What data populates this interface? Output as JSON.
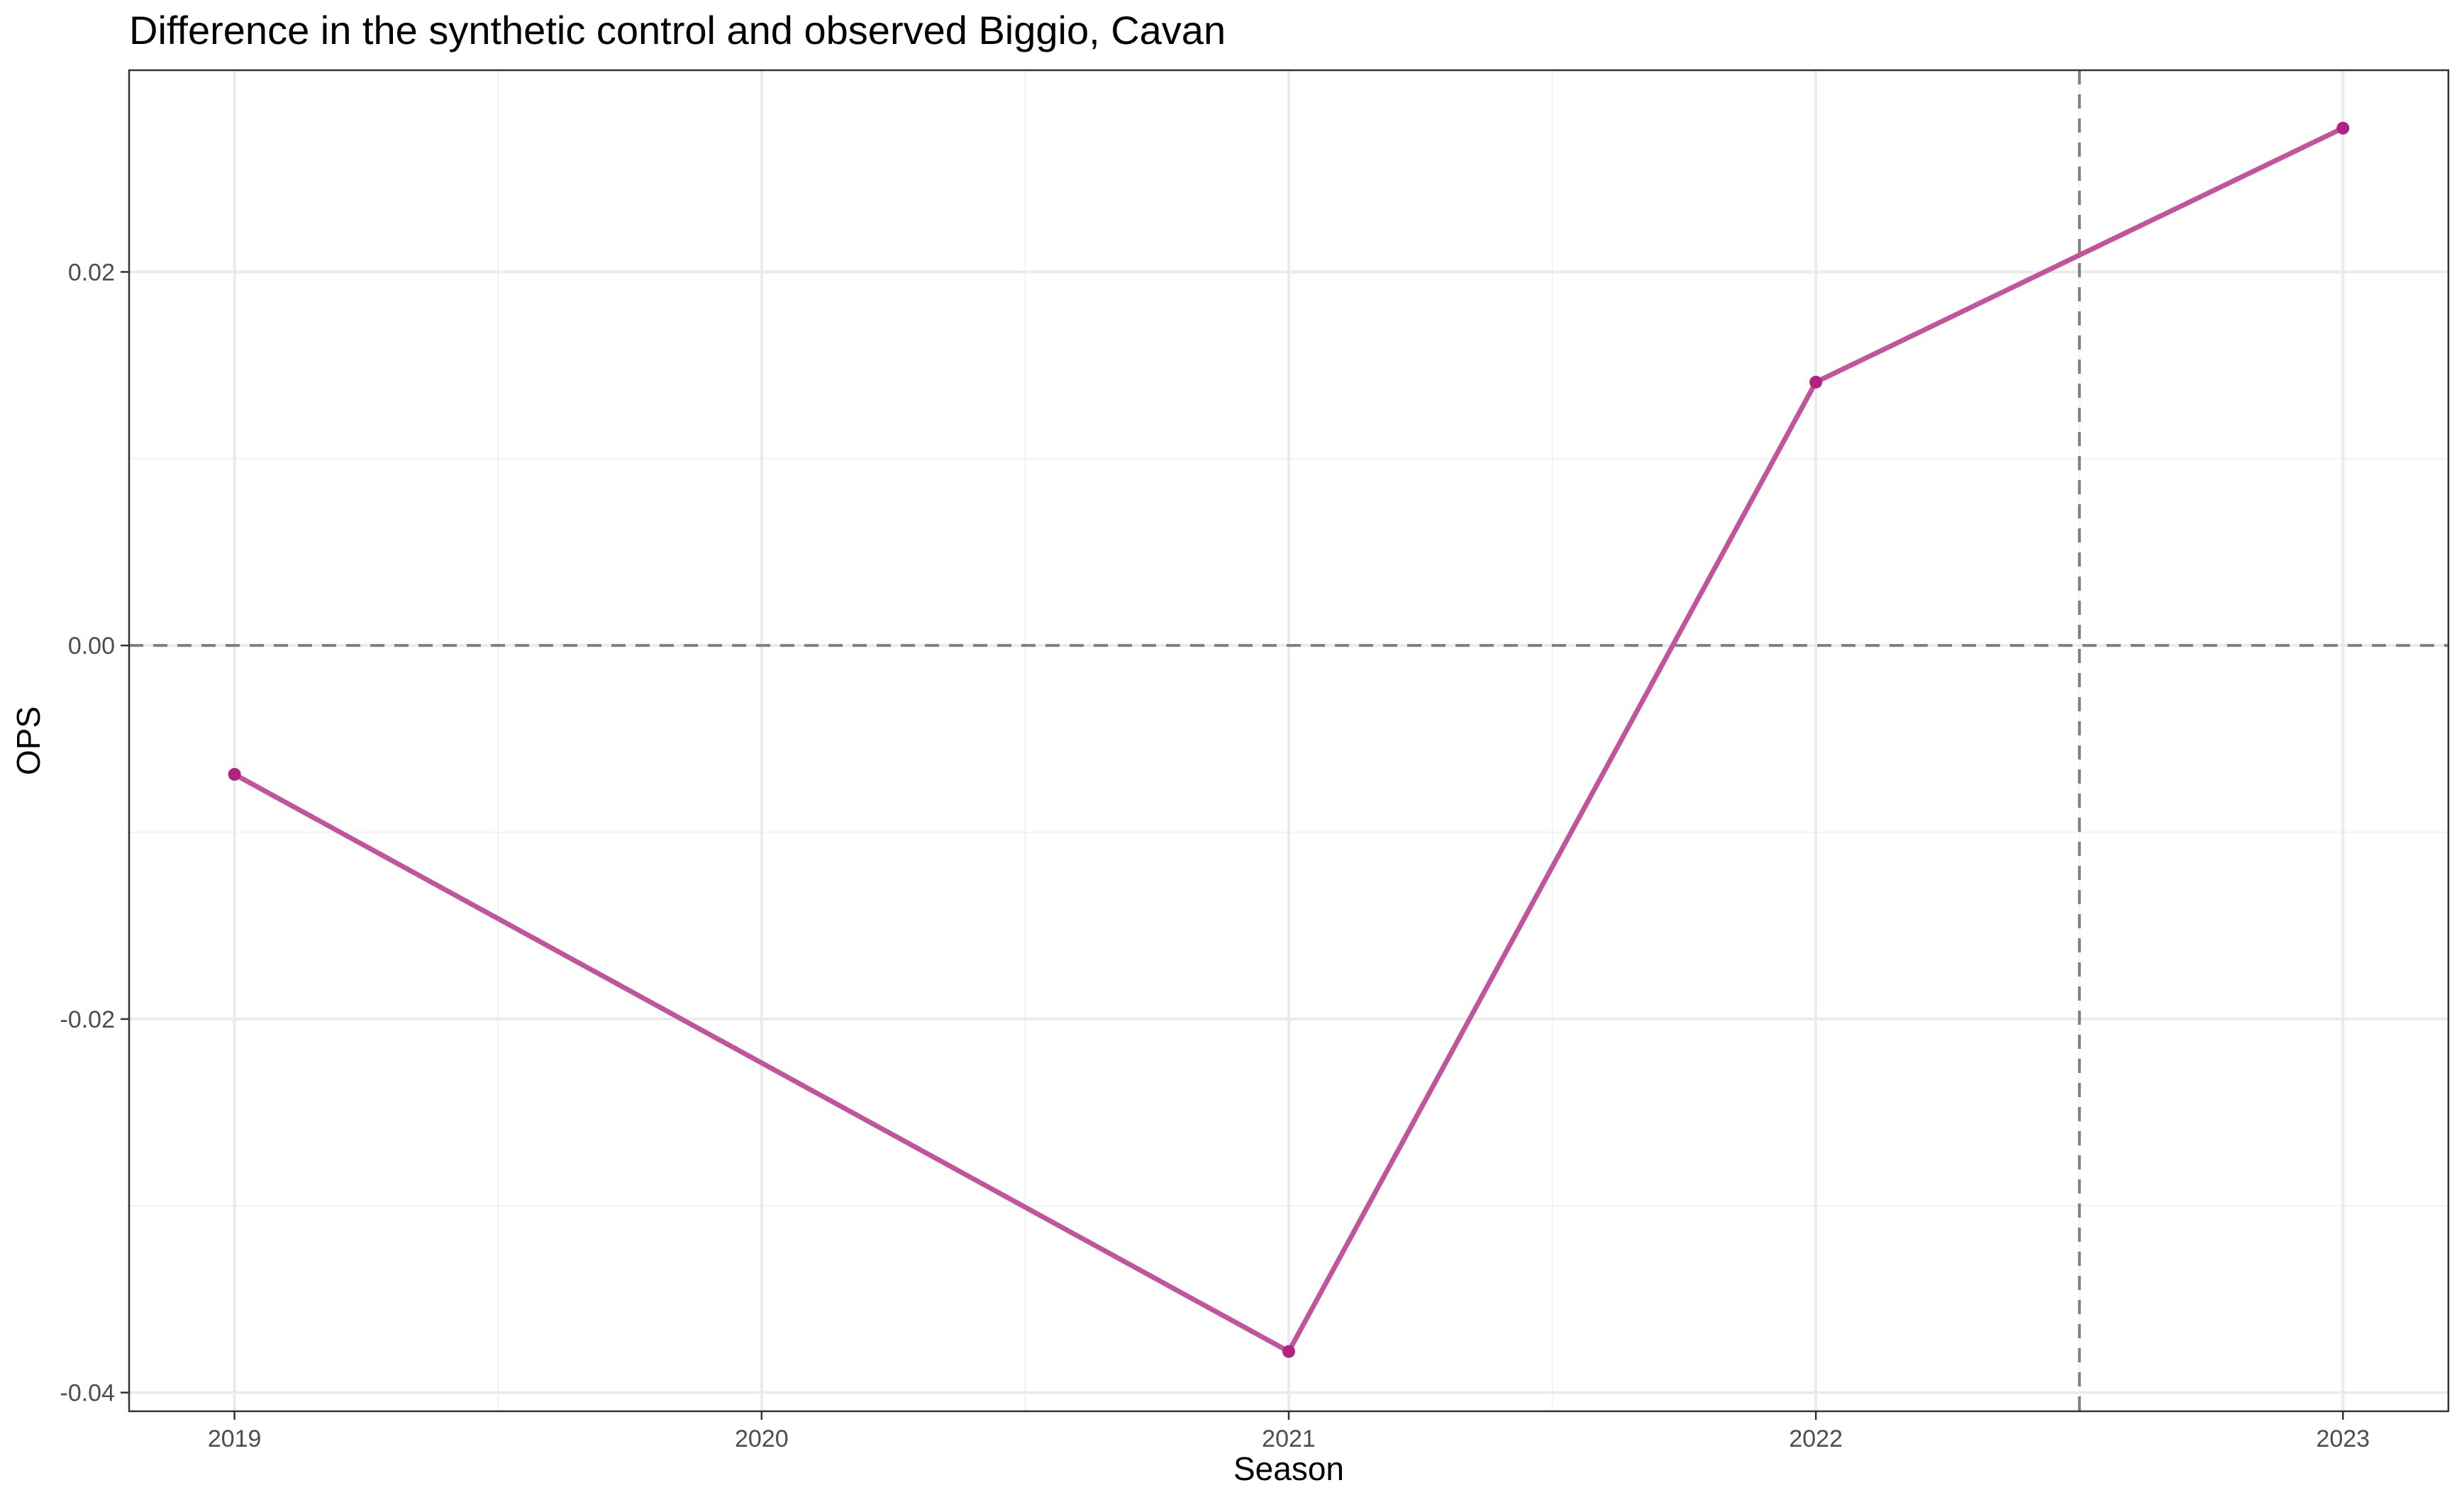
{
  "chart_data": {
    "type": "line",
    "title": "Difference in the synthetic control and observed Biggio, Cavan",
    "xlabel": "Season",
    "ylabel": "OPS",
    "x": [
      2019,
      2020,
      2021,
      2022,
      2023
    ],
    "x_tick_labels": [
      "2019",
      "2020",
      "2021",
      "2022",
      "2023"
    ],
    "y_tick_values": [
      -0.04,
      -0.02,
      0.0,
      0.02
    ],
    "y_tick_labels": [
      "-0.04",
      "-0.02",
      "0.00",
      "0.02"
    ],
    "xlim": [
      2018.8,
      2023.2
    ],
    "ylim": [
      -0.041,
      0.0308
    ],
    "grid": true,
    "series": [
      {
        "points": [
          {
            "x": 2019,
            "y": -0.0069
          },
          {
            "x": 2021,
            "y": -0.0378
          },
          {
            "x": 2022,
            "y": 0.0141
          },
          {
            "x": 2023,
            "y": 0.0277
          }
        ],
        "color": "#c2549e",
        "point_color": "#b0237f"
      }
    ],
    "reference_lines": [
      {
        "orientation": "horizontal",
        "value": 0.0,
        "style": "dashed",
        "color": "#7f7f7f"
      },
      {
        "orientation": "vertical",
        "value": 2022.5,
        "style": "dashed",
        "color": "#7f7f7f"
      }
    ]
  }
}
